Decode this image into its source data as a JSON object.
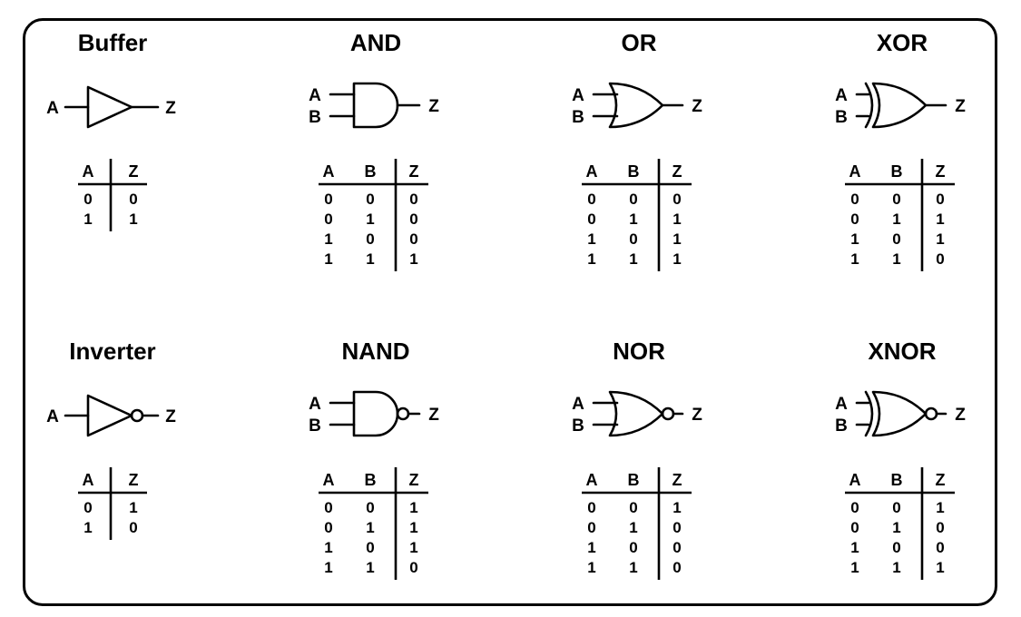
{
  "gates": [
    {
      "id": "buffer",
      "title": "Buffer",
      "inputs": [
        "A"
      ],
      "output": "Z",
      "kind": "buffer",
      "bubble": false,
      "table": {
        "headers": [
          "A",
          "Z"
        ],
        "rows": [
          [
            "0",
            "0"
          ],
          [
            "1",
            "1"
          ]
        ]
      }
    },
    {
      "id": "and",
      "title": "AND",
      "inputs": [
        "A",
        "B"
      ],
      "output": "Z",
      "kind": "and",
      "bubble": false,
      "table": {
        "headers": [
          "A",
          "B",
          "Z"
        ],
        "rows": [
          [
            "0",
            "0",
            "0"
          ],
          [
            "0",
            "1",
            "0"
          ],
          [
            "1",
            "0",
            "0"
          ],
          [
            "1",
            "1",
            "1"
          ]
        ]
      }
    },
    {
      "id": "or",
      "title": "OR",
      "inputs": [
        "A",
        "B"
      ],
      "output": "Z",
      "kind": "or",
      "bubble": false,
      "table": {
        "headers": [
          "A",
          "B",
          "Z"
        ],
        "rows": [
          [
            "0",
            "0",
            "0"
          ],
          [
            "0",
            "1",
            "1"
          ],
          [
            "1",
            "0",
            "1"
          ],
          [
            "1",
            "1",
            "1"
          ]
        ]
      }
    },
    {
      "id": "xor",
      "title": "XOR",
      "inputs": [
        "A",
        "B"
      ],
      "output": "Z",
      "kind": "xor",
      "bubble": false,
      "table": {
        "headers": [
          "A",
          "B",
          "Z"
        ],
        "rows": [
          [
            "0",
            "0",
            "0"
          ],
          [
            "0",
            "1",
            "1"
          ],
          [
            "1",
            "0",
            "1"
          ],
          [
            "1",
            "1",
            "0"
          ]
        ]
      }
    },
    {
      "id": "inverter",
      "title": "Inverter",
      "inputs": [
        "A"
      ],
      "output": "Z",
      "kind": "buffer",
      "bubble": true,
      "table": {
        "headers": [
          "A",
          "Z"
        ],
        "rows": [
          [
            "0",
            "1"
          ],
          [
            "1",
            "0"
          ]
        ]
      }
    },
    {
      "id": "nand",
      "title": "NAND",
      "inputs": [
        "A",
        "B"
      ],
      "output": "Z",
      "kind": "and",
      "bubble": true,
      "table": {
        "headers": [
          "A",
          "B",
          "Z"
        ],
        "rows": [
          [
            "0",
            "0",
            "1"
          ],
          [
            "0",
            "1",
            "1"
          ],
          [
            "1",
            "0",
            "1"
          ],
          [
            "1",
            "1",
            "0"
          ]
        ]
      }
    },
    {
      "id": "nor",
      "title": "NOR",
      "inputs": [
        "A",
        "B"
      ],
      "output": "Z",
      "kind": "or",
      "bubble": true,
      "table": {
        "headers": [
          "A",
          "B",
          "Z"
        ],
        "rows": [
          [
            "0",
            "0",
            "1"
          ],
          [
            "0",
            "1",
            "0"
          ],
          [
            "1",
            "0",
            "0"
          ],
          [
            "1",
            "1",
            "0"
          ]
        ]
      }
    },
    {
      "id": "xnor",
      "title": "XNOR",
      "inputs": [
        "A",
        "B"
      ],
      "output": "Z",
      "kind": "xor",
      "bubble": true,
      "table": {
        "headers": [
          "A",
          "B",
          "Z"
        ],
        "rows": [
          [
            "0",
            "0",
            "1"
          ],
          [
            "0",
            "1",
            "0"
          ],
          [
            "1",
            "0",
            "0"
          ],
          [
            "1",
            "1",
            "1"
          ]
        ]
      }
    }
  ]
}
